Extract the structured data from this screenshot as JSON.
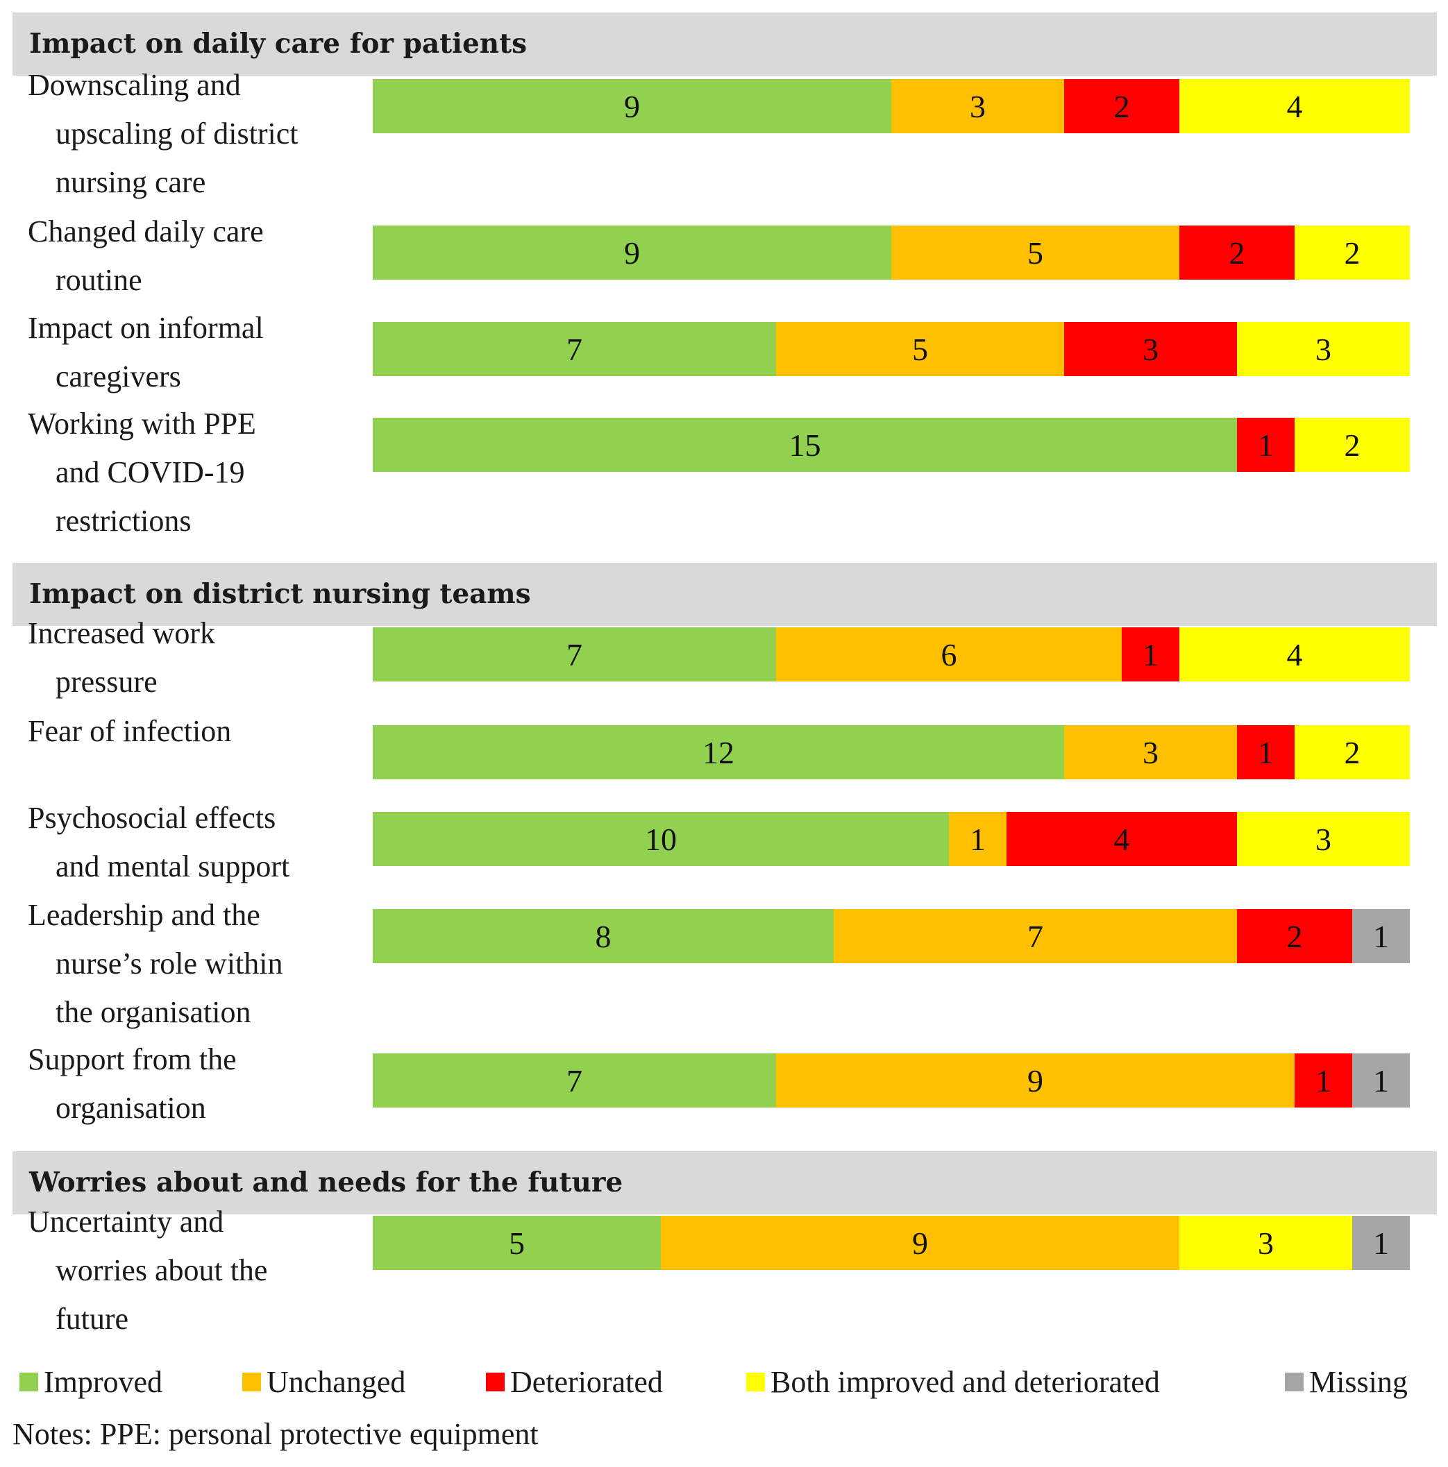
{
  "chart_data": {
    "type": "bar",
    "orientation": "horizontal",
    "stacked": true,
    "categories": [
      "Downscaling and upscaling of district nursing care",
      "Changed daily care routine",
      "Impact on informal caregivers",
      "Working with PPE and COVID-19 restrictions",
      "Increased work pressure",
      "Fear of infection",
      "Psychosocial effects and mental support",
      "Leadership and the nurse’s role within the organisation",
      "Support from the organisation",
      "Uncertainty and worries about the future"
    ],
    "series": [
      {
        "name": "Improved",
        "color": "#92d050",
        "values": [
          9,
          9,
          7,
          15,
          7,
          12,
          10,
          8,
          7,
          5
        ]
      },
      {
        "name": "Unchanged",
        "color": "#ffc000",
        "values": [
          3,
          5,
          5,
          0,
          6,
          3,
          1,
          7,
          9,
          9
        ]
      },
      {
        "name": "Deteriorated",
        "color": "#ff0000",
        "values": [
          2,
          2,
          3,
          1,
          1,
          1,
          4,
          2,
          1,
          0
        ]
      },
      {
        "name": "Both improved and deteriorated",
        "color": "#ffff00",
        "values": [
          4,
          2,
          3,
          2,
          4,
          2,
          3,
          0,
          0,
          3
        ]
      },
      {
        "name": "Missing",
        "color": "#a6a6a6",
        "values": [
          0,
          0,
          0,
          0,
          0,
          0,
          0,
          1,
          1,
          1
        ]
      }
    ],
    "xlim": [
      0,
      18
    ],
    "grid": false,
    "legend_position": "bottom"
  },
  "sections": [
    {
      "title": "Impact on daily care for patients"
    },
    {
      "title": "Impact on district nursing teams"
    },
    {
      "title": "Worries about and needs for the future"
    }
  ],
  "rows": [
    {
      "lines": [
        "Downscaling and",
        "upscaling of district",
        "nursing care"
      ]
    },
    {
      "lines": [
        "Changed daily care",
        "routine"
      ]
    },
    {
      "lines": [
        "Impact on informal",
        "caregivers"
      ]
    },
    {
      "lines": [
        "Working with PPE",
        "and COVID-19",
        "restrictions"
      ]
    },
    {
      "lines": [
        "Increased work",
        "pressure"
      ]
    },
    {
      "lines": [
        "Fear of infection"
      ]
    },
    {
      "lines": [
        "Psychosocial effects",
        "and mental support"
      ]
    },
    {
      "lines": [
        "Leadership and the",
        "nurse’s role within",
        "the organisation"
      ]
    },
    {
      "lines": [
        "Support from the",
        "organisation"
      ]
    },
    {
      "lines": [
        "Uncertainty and",
        "worries about the",
        "future"
      ]
    }
  ],
  "notes": "Notes: PPE: personal protective equipment"
}
